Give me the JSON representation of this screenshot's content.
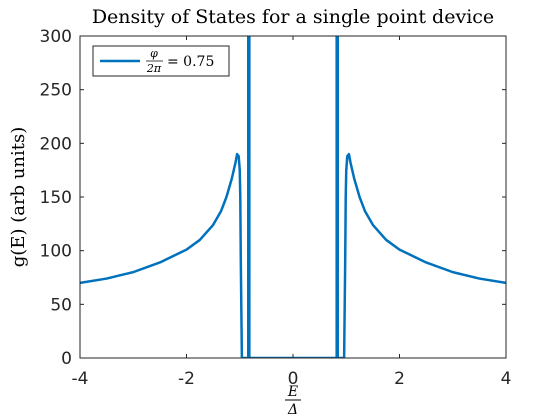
{
  "chart_data": {
    "type": "line",
    "title": "Density of States for a single point device",
    "xlabel_num": "E",
    "xlabel_den": "Δ",
    "ylabel": "g(E) (arb units)",
    "xlim": [
      -4,
      4
    ],
    "ylim": [
      0,
      300
    ],
    "xticks": [
      -4,
      -2,
      0,
      2,
      4
    ],
    "xtick_labels": [
      "-4",
      "-2",
      "0",
      "2",
      "4"
    ],
    "yticks": [
      0,
      50,
      100,
      150,
      200,
      250,
      300
    ],
    "ytick_labels": [
      "0",
      "50",
      "100",
      "150",
      "200",
      "250",
      "300"
    ],
    "grid": false,
    "legend_position": "top-left",
    "series": [
      {
        "legend_num": "φ",
        "legend_den": "2π",
        "legend_value": "= 0.75",
        "color": "#0072BD",
        "x": [
          -4,
          -3.5,
          -3,
          -2.5,
          -2,
          -1.75,
          -1.5,
          -1.35,
          -1.25,
          -1.15,
          -1.08,
          -1.05,
          -1.02,
          -1.0,
          -0.99,
          -0.98,
          -0.96,
          -0.92,
          -0.86,
          -0.84,
          -0.84,
          -0.82,
          -0.82,
          0,
          0.82,
          0.82,
          0.84,
          0.84,
          0.86,
          0.92,
          0.96,
          0.98,
          0.99,
          1.0,
          1.02,
          1.05,
          1.08,
          1.15,
          1.25,
          1.35,
          1.5,
          1.75,
          2,
          2.5,
          3,
          3.5,
          4
        ],
        "y": [
          70,
          74,
          80,
          89,
          101,
          110,
          124,
          137,
          150,
          167,
          182,
          190,
          188,
          175,
          150,
          90,
          0,
          0,
          0,
          0,
          300,
          300,
          0,
          0,
          0,
          300,
          300,
          0,
          0,
          0,
          0,
          90,
          150,
          175,
          188,
          190,
          182,
          167,
          150,
          137,
          124,
          110,
          101,
          89,
          80,
          74,
          70
        ]
      }
    ]
  }
}
